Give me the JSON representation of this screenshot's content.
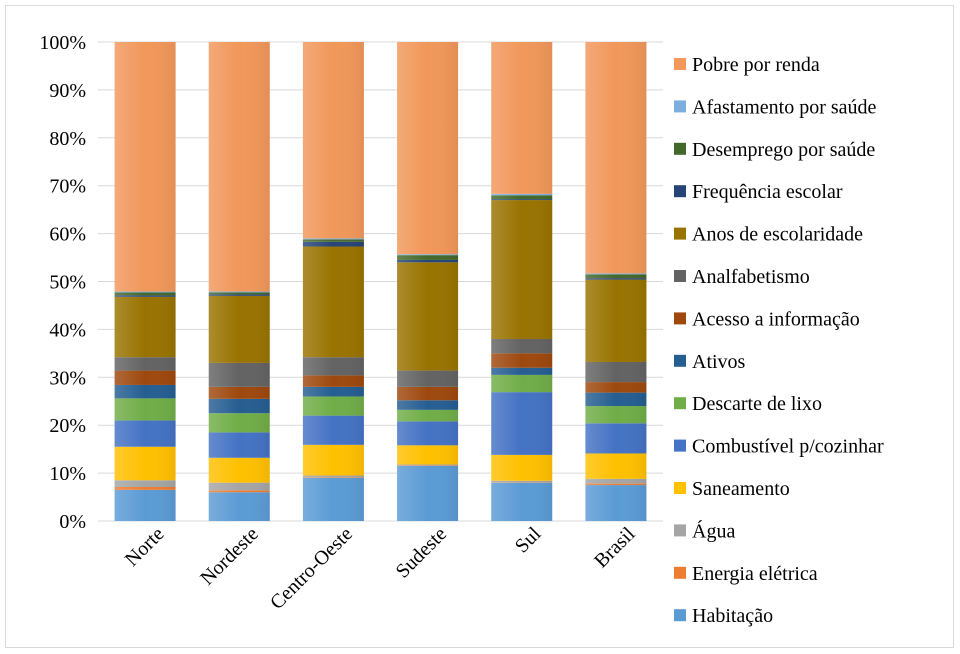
{
  "chart_data": {
    "type": "bar",
    "stacked": true,
    "percent_axis": true,
    "categories": [
      "Norte",
      "Nordeste",
      "Centro-Oeste",
      "Sudeste",
      "Sul",
      "Brasil"
    ],
    "y_ticks": [
      "0%",
      "10%",
      "20%",
      "30%",
      "40%",
      "50%",
      "60%",
      "70%",
      "80%",
      "90%",
      "100%"
    ],
    "ylim": [
      0,
      100
    ],
    "grid": true,
    "legend_position": "right",
    "series": [
      {
        "name": "Habitação",
        "color": "#5B9BD5",
        "values": [
          6.5,
          6.0,
          9.0,
          11.5,
          8.0,
          7.5
        ]
      },
      {
        "name": "Energia elétrica",
        "color": "#ED7D31",
        "values": [
          0.6,
          0.4,
          0.1,
          0.1,
          0.1,
          0.3
        ]
      },
      {
        "name": "Água",
        "color": "#A5A5A5",
        "values": [
          1.4,
          1.6,
          0.4,
          0.2,
          0.3,
          1.0
        ]
      },
      {
        "name": "Saneamento",
        "color": "#FFC000",
        "values": [
          7.0,
          5.2,
          6.4,
          4.0,
          5.4,
          5.3
        ]
      },
      {
        "name": "Combustível p/cozinhar",
        "color": "#4472C4",
        "values": [
          5.5,
          5.3,
          6.1,
          5.0,
          13.1,
          6.3
        ]
      },
      {
        "name": "Descarte de lixo",
        "color": "#70AD47",
        "values": [
          4.6,
          4.0,
          4.0,
          2.4,
          3.6,
          3.6
        ]
      },
      {
        "name": "Ativos",
        "color": "#255E91",
        "values": [
          2.8,
          3.0,
          2.0,
          2.0,
          1.5,
          2.8
        ]
      },
      {
        "name": "Acesso a informação",
        "color": "#9E480E",
        "values": [
          3.0,
          2.5,
          2.4,
          2.8,
          3.0,
          2.2
        ]
      },
      {
        "name": "Analfabetismo",
        "color": "#636363",
        "values": [
          2.8,
          5.0,
          3.8,
          3.4,
          3.0,
          4.2
        ]
      },
      {
        "name": "Anos de escolaridade",
        "color": "#997300",
        "values": [
          12.6,
          14.0,
          23.1,
          22.6,
          29.0,
          17.2
        ]
      },
      {
        "name": "Frequência escolar",
        "color": "#264478",
        "values": [
          0.3,
          0.3,
          1.0,
          0.5,
          0.2,
          0.3
        ]
      },
      {
        "name": "Desemprego por saúde",
        "color": "#43682B",
        "values": [
          0.6,
          0.4,
          0.5,
          1.0,
          0.8,
          0.8
        ]
      },
      {
        "name": "Afastamento por saúde",
        "color": "#7CAFDD",
        "values": [
          0.2,
          0.2,
          0.2,
          0.2,
          0.3,
          0.2
        ]
      },
      {
        "name": "Pobre por renda",
        "color": "#F1975A",
        "values": [
          52.1,
          52.1,
          41.0,
          44.3,
          31.7,
          48.3
        ]
      }
    ]
  }
}
